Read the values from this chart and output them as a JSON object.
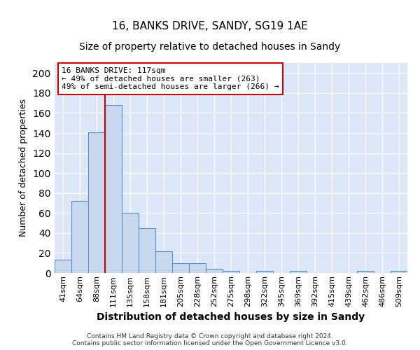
{
  "title1": "16, BANKS DRIVE, SANDY, SG19 1AE",
  "title2": "Size of property relative to detached houses in Sandy",
  "xlabel": "Distribution of detached houses by size in Sandy",
  "ylabel": "Number of detached properties",
  "bin_labels": [
    "41sqm",
    "64sqm",
    "88sqm",
    "111sqm",
    "135sqm",
    "158sqm",
    "181sqm",
    "205sqm",
    "228sqm",
    "252sqm",
    "275sqm",
    "298sqm",
    "322sqm",
    "345sqm",
    "369sqm",
    "392sqm",
    "415sqm",
    "439sqm",
    "462sqm",
    "486sqm",
    "509sqm"
  ],
  "bar_values": [
    13,
    72,
    141,
    168,
    60,
    45,
    22,
    10,
    10,
    4,
    2,
    0,
    2,
    0,
    2,
    0,
    0,
    0,
    2,
    0,
    2
  ],
  "bar_color": "#c8d8ef",
  "bar_edge_color": "#5b8dc8",
  "vline_x_index": 3,
  "vline_color": "#cc0000",
  "annotation_line1": "16 BANKS DRIVE: 117sqm",
  "annotation_line2": "← 49% of detached houses are smaller (263)",
  "annotation_line3": "49% of semi-detached houses are larger (266) →",
  "annotation_box_color": "#ffffff",
  "annotation_box_edge": "#cc0000",
  "ylim": [
    0,
    210
  ],
  "yticks": [
    0,
    20,
    40,
    60,
    80,
    100,
    120,
    140,
    160,
    180,
    200
  ],
  "bg_color": "#dce8f8",
  "grid_color": "#ffffff",
  "footer1": "Contains HM Land Registry data © Crown copyright and database right 2024.",
  "footer2": "Contains public sector information licensed under the Open Government Licence v3.0.",
  "title1_fontsize": 11,
  "title2_fontsize": 10,
  "xlabel_fontsize": 10,
  "ylabel_fontsize": 9,
  "tick_fontsize": 8
}
